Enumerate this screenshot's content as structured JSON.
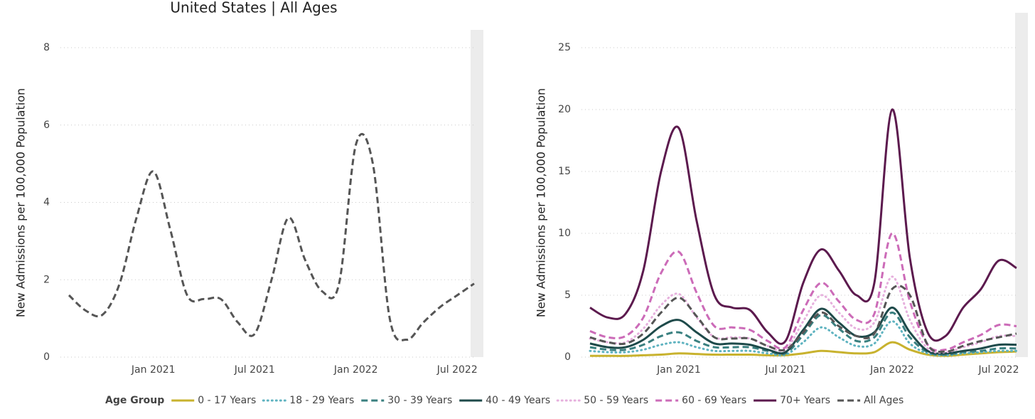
{
  "chart_data": [
    {
      "type": "line",
      "title": "United States | All Ages",
      "y_label": "New Admissions per 100,000 Population",
      "x": [
        "2020-08",
        "2020-09",
        "2020-10",
        "2020-11",
        "2020-12",
        "2021-01",
        "2021-02",
        "2021-03",
        "2021-04",
        "2021-05",
        "2021-06",
        "2021-07",
        "2021-08",
        "2021-09",
        "2021-10",
        "2021-11",
        "2021-12",
        "2022-01",
        "2022-02",
        "2022-03",
        "2022-04",
        "2022-05",
        "2022-06",
        "2022-07",
        "2022-08"
      ],
      "values": [
        1.6,
        1.2,
        1.1,
        1.9,
        3.6,
        4.8,
        3.3,
        1.6,
        1.5,
        1.5,
        0.9,
        0.6,
        2.0,
        3.6,
        2.5,
        1.7,
        1.9,
        5.5,
        5.0,
        1.0,
        0.45,
        0.9,
        1.3,
        1.6,
        1.9
      ],
      "color": "#555555",
      "dash": "dashed",
      "xlim": [
        "2020-08",
        "2022-08"
      ],
      "xticks": [
        {
          "value": "2021-01",
          "label": "Jan 2021"
        },
        {
          "value": "2021-07",
          "label": "Jul 2021"
        },
        {
          "value": "2022-01",
          "label": "Jan 2022"
        },
        {
          "value": "2022-07",
          "label": "Jul 2022"
        }
      ],
      "ylim": [
        0,
        8
      ],
      "yticks": [
        0,
        2,
        4,
        6,
        8
      ],
      "grid": true
    },
    {
      "type": "line",
      "y_label": "New Admissions per 100,000 Population",
      "x": [
        "2020-08",
        "2020-09",
        "2020-10",
        "2020-11",
        "2020-12",
        "2021-01",
        "2021-02",
        "2021-03",
        "2021-04",
        "2021-05",
        "2021-06",
        "2021-07",
        "2021-08",
        "2021-09",
        "2021-10",
        "2021-11",
        "2021-12",
        "2022-01",
        "2022-02",
        "2022-03",
        "2022-04",
        "2022-05",
        "2022-06",
        "2022-07",
        "2022-08"
      ],
      "series": [
        {
          "name": "0 - 17 Years",
          "color": "#c8b22e",
          "dash": "solid",
          "values": [
            0.1,
            0.1,
            0.1,
            0.15,
            0.2,
            0.3,
            0.25,
            0.2,
            0.2,
            0.2,
            0.15,
            0.15,
            0.3,
            0.5,
            0.4,
            0.3,
            0.4,
            1.2,
            0.6,
            0.2,
            0.1,
            0.2,
            0.3,
            0.4,
            0.45
          ]
        },
        {
          "name": "18 - 29 Years",
          "color": "#5fb3c0",
          "dash": "dotted",
          "values": [
            0.5,
            0.4,
            0.4,
            0.6,
            1.0,
            1.2,
            0.8,
            0.5,
            0.5,
            0.5,
            0.3,
            0.2,
            1.2,
            2.4,
            1.6,
            0.9,
            1.1,
            2.9,
            1.1,
            0.3,
            0.15,
            0.3,
            0.4,
            0.5,
            0.5
          ]
        },
        {
          "name": "30 - 39 Years",
          "color": "#3a8080",
          "dash": "dashed",
          "values": [
            0.8,
            0.6,
            0.6,
            1.0,
            1.7,
            2.0,
            1.3,
            0.8,
            0.8,
            0.8,
            0.5,
            0.3,
            1.8,
            3.4,
            2.3,
            1.3,
            1.6,
            3.6,
            1.6,
            0.4,
            0.2,
            0.4,
            0.5,
            0.7,
            0.7
          ]
        },
        {
          "name": "40 - 49 Years",
          "color": "#1e4a4a",
          "dash": "solid",
          "values": [
            1.1,
            0.8,
            0.8,
            1.4,
            2.5,
            3.0,
            2.0,
            1.1,
            1.1,
            1.0,
            0.6,
            0.4,
            2.2,
            3.9,
            2.8,
            1.7,
            2.0,
            4.0,
            2.0,
            0.5,
            0.3,
            0.5,
            0.7,
            1.0,
            1.0
          ]
        },
        {
          "name": "50 - 59 Years",
          "color": "#e6b0dd",
          "dash": "dotted",
          "values": [
            1.5,
            1.2,
            1.2,
            2.3,
            4.2,
            5.1,
            3.2,
            1.6,
            1.6,
            1.5,
            0.9,
            0.6,
            2.9,
            5.0,
            3.6,
            2.3,
            2.8,
            6.5,
            3.0,
            0.7,
            0.4,
            0.8,
            1.2,
            1.7,
            1.7
          ]
        },
        {
          "name": "60 - 69 Years",
          "color": "#cc6bb8",
          "dash": "dashed",
          "values": [
            2.1,
            1.6,
            1.7,
            3.2,
            6.8,
            8.5,
            5.2,
            2.5,
            2.4,
            2.2,
            1.3,
            0.8,
            3.8,
            6.0,
            4.5,
            3.0,
            3.5,
            10.0,
            4.5,
            1.0,
            0.6,
            1.2,
            1.8,
            2.6,
            2.5
          ]
        },
        {
          "name": "70+ Years",
          "color": "#5c1a4e",
          "dash": "solid",
          "values": [
            4.0,
            3.2,
            3.5,
            7,
            15,
            18.5,
            11,
            5,
            4,
            3.8,
            2.0,
            1.3,
            6,
            8.7,
            7,
            5,
            6,
            20,
            8,
            2,
            1.7,
            4,
            5.5,
            7.8,
            7.2
          ]
        },
        {
          "name": "All Ages",
          "color": "#555555",
          "dash": "dashed",
          "values": [
            1.6,
            1.2,
            1.1,
            1.9,
            3.6,
            4.8,
            3.3,
            1.6,
            1.5,
            1.5,
            0.9,
            0.6,
            2.0,
            3.6,
            2.5,
            1.7,
            1.9,
            5.5,
            5.0,
            1.0,
            0.45,
            0.9,
            1.3,
            1.6,
            1.9
          ]
        }
      ],
      "xlim": [
        "2020-08",
        "2022-08"
      ],
      "xticks": [
        {
          "value": "2021-01",
          "label": "Jan 2021"
        },
        {
          "value": "2021-07",
          "label": "Jul 2021"
        },
        {
          "value": "2022-01",
          "label": "Jan 2022"
        },
        {
          "value": "2022-07",
          "label": "Jul 2022"
        }
      ],
      "ylim": [
        0,
        25
      ],
      "yticks": [
        0,
        5,
        10,
        15,
        20,
        25
      ],
      "grid": true,
      "legend_title": "Age Group",
      "legend": "bottom"
    }
  ]
}
